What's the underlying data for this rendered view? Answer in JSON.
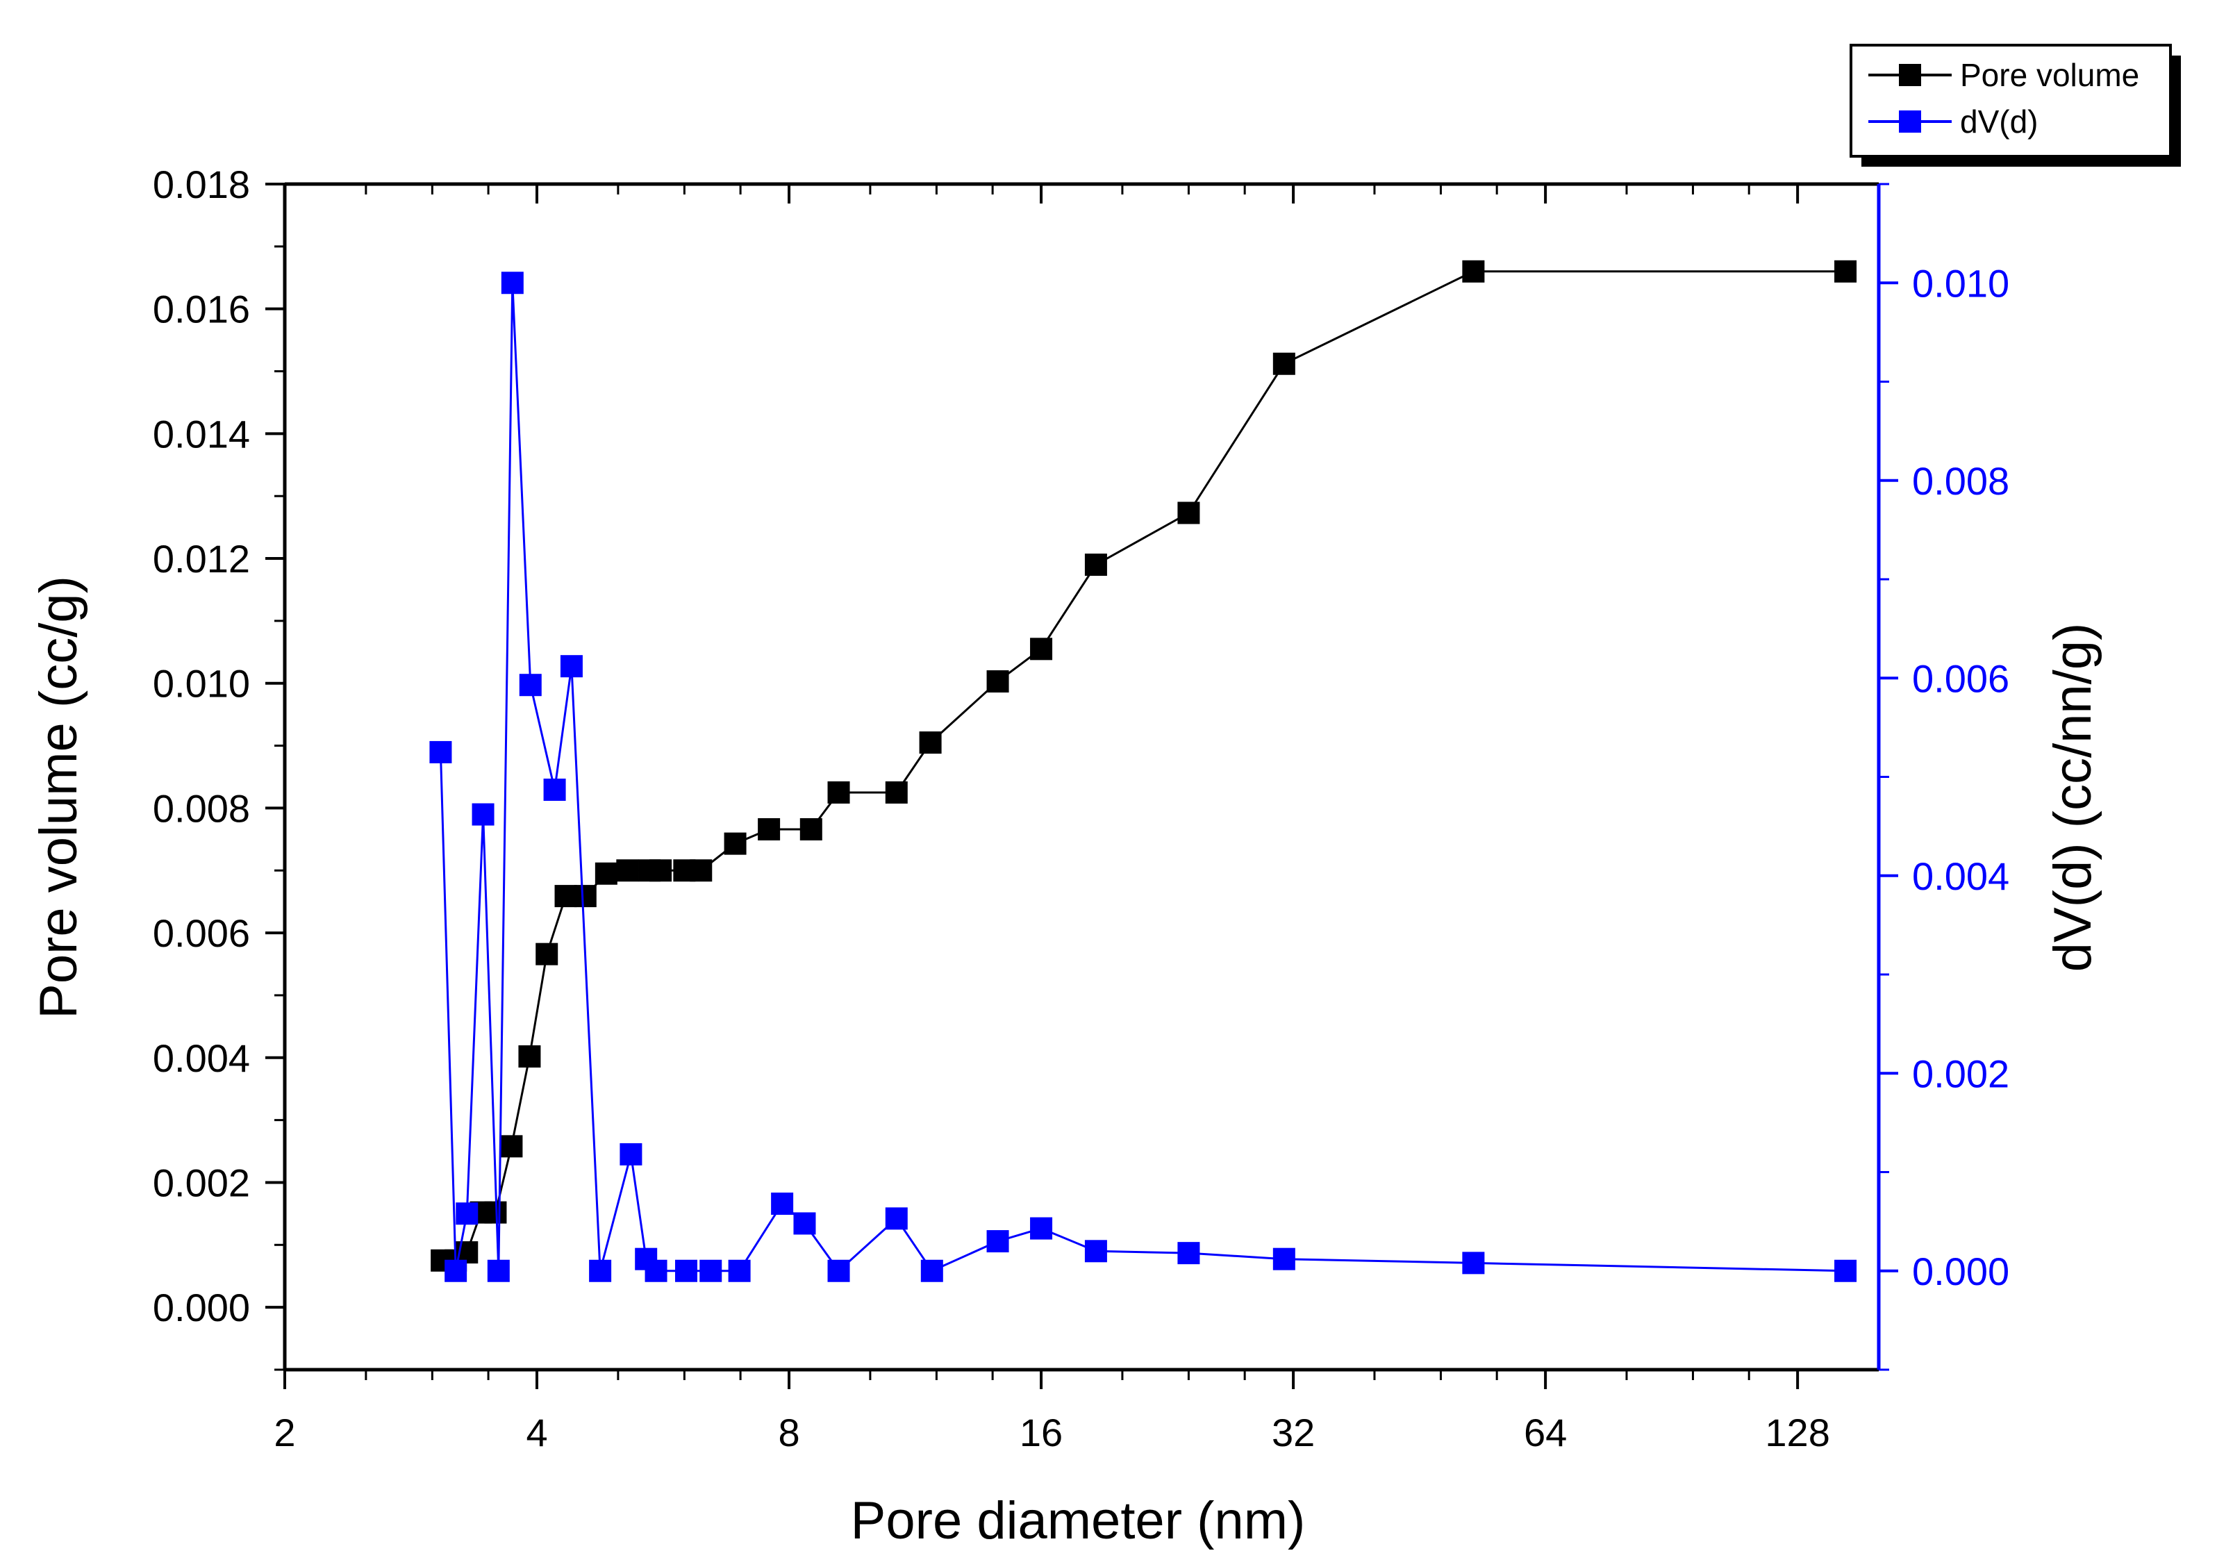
{
  "colors": {
    "pore_volume": "#000000",
    "dvd": "#0000ff",
    "axis_left": "#000000",
    "axis_right": "#0000ff",
    "background": "#ffffff"
  },
  "chart_data": {
    "type": "line",
    "xlabel": "Pore diameter (nm)",
    "ylabel": "Pore volume (cc/g)",
    "y2label": "dV(d) (cc/nn/g)",
    "xscale": "log2",
    "xlim": [
      2,
      160
    ],
    "ylim": [
      -0.001,
      0.018
    ],
    "y2lim": [
      -0.001,
      0.011
    ],
    "xticks": [
      2,
      4,
      8,
      16,
      32,
      64,
      128
    ],
    "xtick_labels": [
      "2",
      "4",
      "8",
      "16",
      "32",
      "64",
      "128"
    ],
    "yticks": [
      0,
      0.002,
      0.004,
      0.006,
      0.008,
      0.01,
      0.012,
      0.014,
      0.016,
      0.018
    ],
    "ytick_labels": [
      "0.000",
      "0.002",
      "0.004",
      "0.006",
      "0.008",
      "0.010",
      "0.012",
      "0.014",
      "0.016",
      "0.018"
    ],
    "y2ticks": [
      0,
      0.002,
      0.004,
      0.006,
      0.008,
      0.01
    ],
    "y2tick_labels": [
      "0.000",
      "0.002",
      "0.004",
      "0.006",
      "0.008",
      "0.010"
    ],
    "legend_position": "top-right outside",
    "series": [
      {
        "name": "Pore volume",
        "axis": "left",
        "color": "#000000",
        "x": [
          3.08,
          3.2,
          3.3,
          3.43,
          3.57,
          3.73,
          3.92,
          4.11,
          4.33,
          4.57,
          4.84,
          5.13,
          5.45,
          5.62,
          6.0,
          6.28,
          6.9,
          7.57,
          8.5,
          9.17,
          10.75,
          11.8,
          14.2,
          16.0,
          18.6,
          24.0,
          31.2,
          52.5,
          146.0
        ],
        "y": [
          0.00075,
          0.00075,
          0.00088,
          0.00152,
          0.00152,
          0.00258,
          0.00402,
          0.00566,
          0.00659,
          0.00659,
          0.00695,
          0.007,
          0.007,
          0.007,
          0.007,
          0.007,
          0.00743,
          0.00766,
          0.00766,
          0.00825,
          0.00825,
          0.00905,
          0.01003,
          0.01055,
          0.0119,
          0.01273,
          0.01512,
          0.0166,
          0.0166
        ]
      },
      {
        "name": "dV(d)",
        "axis": "right",
        "color": "#0000ff",
        "x": [
          3.07,
          3.2,
          3.3,
          3.45,
          3.6,
          3.74,
          3.93,
          4.2,
          4.4,
          4.76,
          5.18,
          5.4,
          5.55,
          6.03,
          6.45,
          6.98,
          7.85,
          8.35,
          9.17,
          10.75,
          11.85,
          14.2,
          16.0,
          18.6,
          24.0,
          31.2,
          52.5,
          146.0
        ],
        "y": [
          0.00525,
          0.0,
          0.00058,
          0.00462,
          0.0,
          0.01,
          0.00593,
          0.00487,
          0.00612,
          0.0,
          0.00118,
          0.00012,
          0.0,
          0.0,
          0.0,
          0.0,
          0.00068,
          0.00048,
          0.0,
          0.00053,
          0.0,
          0.0003,
          0.00043,
          0.0002,
          0.00018,
          0.00012,
          8e-05,
          0.0
        ]
      }
    ]
  }
}
